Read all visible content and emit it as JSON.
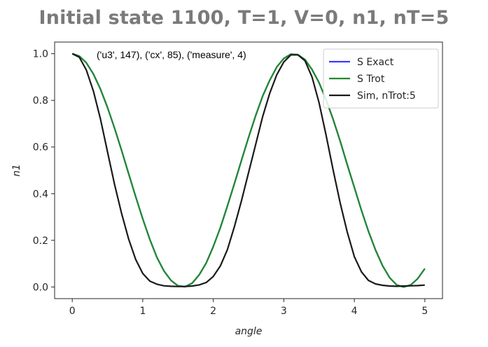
{
  "chart_data": {
    "type": "line",
    "title": "Initial state 1100, T=1, V=0, n1, nT=5",
    "xlabel": "angle",
    "ylabel": "n1",
    "xlim": [
      -0.25,
      5.25
    ],
    "ylim": [
      -0.05,
      1.05
    ],
    "xticks": [
      0,
      1,
      2,
      3,
      4,
      5
    ],
    "yticks": [
      0.0,
      0.2,
      0.4,
      0.6,
      0.8,
      1.0
    ],
    "xtick_labels": [
      "0",
      "1",
      "2",
      "3",
      "4",
      "5"
    ],
    "ytick_labels": [
      "0.0",
      "0.2",
      "0.4",
      "0.6",
      "0.8",
      "1.0"
    ],
    "annotation": "('u3', 147), ('cx', 85), ('measure', 4)",
    "legend_position": "top-right",
    "grid": false,
    "series": [
      {
        "name": "S Exact",
        "color": "#3b3bff",
        "x": [
          0,
          0.1,
          0.2,
          0.3,
          0.4,
          0.5,
          0.6,
          0.7,
          0.8,
          0.9,
          1.0,
          1.1,
          1.2,
          1.3,
          1.4,
          1.5,
          1.6,
          1.7,
          1.8,
          1.9,
          2.0,
          2.1,
          2.2,
          2.3,
          2.4,
          2.5,
          2.6,
          2.7,
          2.8,
          2.9,
          3.0,
          3.1,
          3.2,
          3.3,
          3.4,
          3.5,
          3.6,
          3.7,
          3.8,
          3.9,
          4.0,
          4.1,
          4.2,
          4.3,
          4.4,
          4.5,
          4.6,
          4.7,
          4.8,
          4.9,
          5.0
        ],
        "y": [
          1.0,
          0.99,
          0.961,
          0.913,
          0.848,
          0.77,
          0.681,
          0.585,
          0.485,
          0.387,
          0.292,
          0.204,
          0.127,
          0.069,
          0.028,
          0.005,
          0.001,
          0.016,
          0.052,
          0.103,
          0.173,
          0.254,
          0.347,
          0.444,
          0.543,
          0.641,
          0.734,
          0.818,
          0.886,
          0.943,
          0.98,
          0.998,
          0.996,
          0.975,
          0.932,
          0.876,
          0.802,
          0.718,
          0.625,
          0.524,
          0.427,
          0.329,
          0.239,
          0.159,
          0.091,
          0.04,
          0.009,
          0.0,
          0.009,
          0.036,
          0.079
        ]
      },
      {
        "name": "S Trot",
        "color": "#1f8a2a",
        "x": [
          0,
          0.1,
          0.2,
          0.3,
          0.4,
          0.5,
          0.6,
          0.7,
          0.8,
          0.9,
          1.0,
          1.1,
          1.2,
          1.3,
          1.4,
          1.5,
          1.6,
          1.7,
          1.8,
          1.9,
          2.0,
          2.1,
          2.2,
          2.3,
          2.4,
          2.5,
          2.6,
          2.7,
          2.8,
          2.9,
          3.0,
          3.1,
          3.2,
          3.3,
          3.4,
          3.5,
          3.6,
          3.7,
          3.8,
          3.9,
          4.0,
          4.1,
          4.2,
          4.3,
          4.4,
          4.5,
          4.6,
          4.7,
          4.8,
          4.9,
          5.0
        ],
        "y": [
          1.0,
          0.99,
          0.961,
          0.913,
          0.848,
          0.77,
          0.681,
          0.585,
          0.485,
          0.387,
          0.292,
          0.204,
          0.127,
          0.069,
          0.028,
          0.005,
          0.001,
          0.016,
          0.052,
          0.103,
          0.173,
          0.254,
          0.347,
          0.444,
          0.543,
          0.641,
          0.734,
          0.818,
          0.886,
          0.943,
          0.98,
          0.998,
          0.996,
          0.975,
          0.932,
          0.876,
          0.802,
          0.718,
          0.625,
          0.524,
          0.427,
          0.329,
          0.239,
          0.159,
          0.091,
          0.04,
          0.009,
          0.0,
          0.009,
          0.036,
          0.079
        ]
      },
      {
        "name": "Sim, nTrot:5",
        "color": "#1a1a1a",
        "x": [
          0,
          0.1,
          0.2,
          0.3,
          0.4,
          0.5,
          0.6,
          0.7,
          0.8,
          0.9,
          1.0,
          1.1,
          1.2,
          1.3,
          1.4,
          1.5,
          1.6,
          1.7,
          1.8,
          1.9,
          2.0,
          2.1,
          2.2,
          2.3,
          2.4,
          2.5,
          2.6,
          2.7,
          2.8,
          2.9,
          3.0,
          3.1,
          3.2,
          3.3,
          3.4,
          3.5,
          3.6,
          3.7,
          3.8,
          3.9,
          4.0,
          4.1,
          4.2,
          4.3,
          4.4,
          4.5,
          4.6,
          4.7,
          4.8,
          4.9,
          5.0
        ],
        "y": [
          1.0,
          0.985,
          0.93,
          0.84,
          0.72,
          0.58,
          0.44,
          0.315,
          0.205,
          0.118,
          0.058,
          0.025,
          0.012,
          0.005,
          0.003,
          0.002,
          0.002,
          0.004,
          0.009,
          0.019,
          0.045,
          0.09,
          0.16,
          0.26,
          0.37,
          0.49,
          0.61,
          0.73,
          0.83,
          0.91,
          0.965,
          0.995,
          0.995,
          0.97,
          0.9,
          0.79,
          0.65,
          0.5,
          0.36,
          0.235,
          0.13,
          0.065,
          0.028,
          0.013,
          0.007,
          0.004,
          0.003,
          0.004,
          0.005,
          0.006,
          0.008
        ]
      }
    ]
  }
}
